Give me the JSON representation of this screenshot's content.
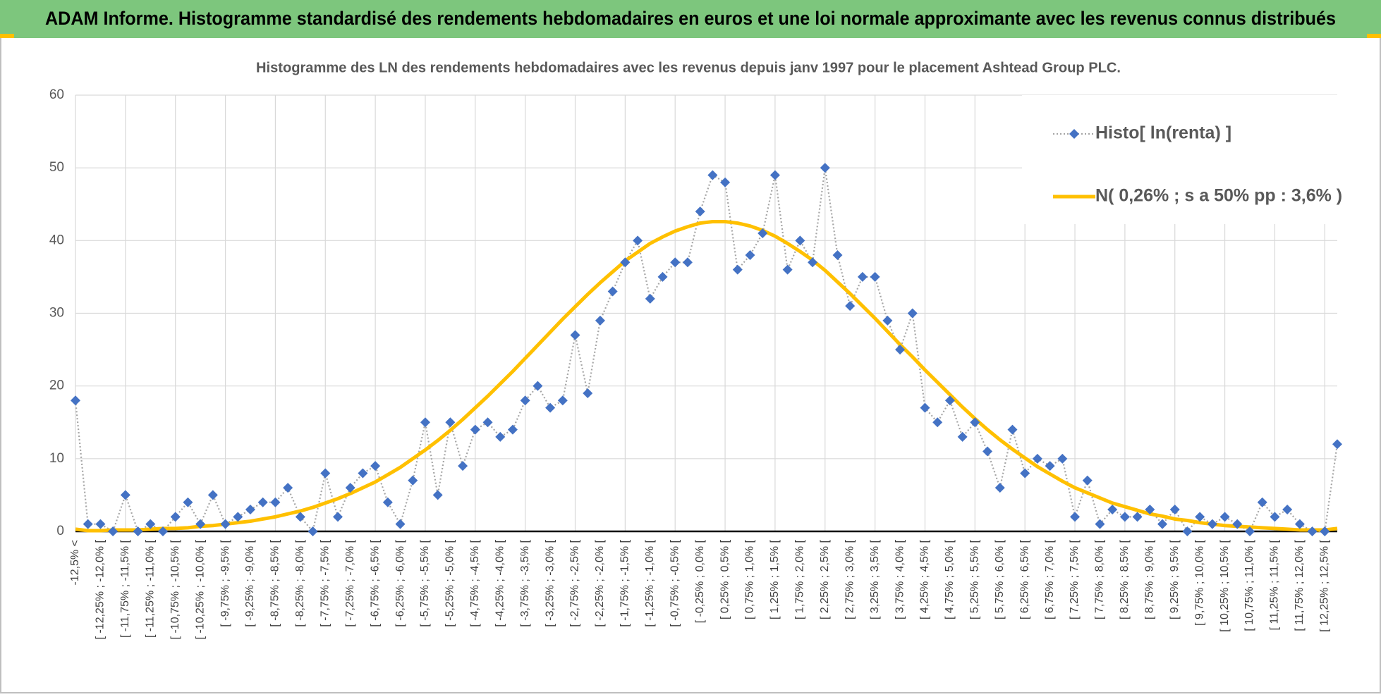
{
  "chart_data": {
    "type": "line",
    "header": "ADAM Informe. Histogramme standardisé des rendements hebdomadaires en euros et une loi normale approximante avec les revenus connus distribués",
    "title": "Histogramme  des LN des rendements  hebdomadaires avec les revenus depuis janv 1997 pour le placement Ashtead Group PLC.",
    "categories": [
      "-12,5% <",
      null,
      "[ -12,25% ; -12,0% [",
      null,
      "[ -11,75% ; -11,5% [",
      null,
      "[ -11,25% ; -11,0% [",
      null,
      "[ -10,75% ; -10,5% [",
      null,
      "[ -10,25% ; -10,0% [",
      null,
      "[ -9,75% ; -9,5% [",
      null,
      "[ -9,25% ; -9,0% [",
      null,
      "[ -8,75% ; -8,5% [",
      null,
      "[ -8,25% ; -8,0% [",
      null,
      "[ -7,75% ; -7,5% [",
      null,
      "[ -7,25% ; -7,0% [",
      null,
      "[ -6,75% ; -6,5% [",
      null,
      "[ -6,25% ; -6,0% [",
      null,
      "[ -5,75% ; -5,5% [",
      null,
      "[ -5,25% ; -5,0% [",
      null,
      "[ -4,75% ; -4,5% [",
      null,
      "[ -4,25% ; -4,0% [",
      null,
      "[ -3,75% ; -3,5% [",
      null,
      "[ -3,25% ; -3,0% [",
      null,
      "[ -2,75% ; -2,5% [",
      null,
      "[ -2,25% ; -2,0% [",
      null,
      "[ -1,75% ; -1,5% [",
      null,
      "[ -1,25% ; -1,0% [",
      null,
      "[ -0,75% ; -0,5% [",
      null,
      "[ -0,25% ; 0,0% [",
      null,
      "[ 0,25% ; 0,5% [",
      null,
      "[ 0,75% ; 1,0% [",
      null,
      "[ 1,25% ; 1,5% [",
      null,
      "[ 1,75% ; 2,0% [",
      null,
      "[ 2,25% ; 2,5% [",
      null,
      "[ 2,75% ; 3,0% [",
      null,
      "[ 3,25% ; 3,5% [",
      null,
      "[ 3,75% ; 4,0% [",
      null,
      "[ 4,25% ; 4,5% [",
      null,
      "[ 4,75% ; 5,0% [",
      null,
      "[ 5,25% ; 5,5% [",
      null,
      "[ 5,75% ; 6,0% [",
      null,
      "[ 6,25% ; 6,5% [",
      null,
      "[ 6,75% ; 7,0% [",
      null,
      "[ 7,25% ; 7,5% [",
      null,
      "[ 7,75% ; 8,0% [",
      null,
      "[ 8,25% ; 8,5% [",
      null,
      "[ 8,75% ; 9,0% [",
      null,
      "[ 9,25% ; 9,5% [",
      null,
      "[ 9,75% ; 10,0% [",
      null,
      "[ 10,25% ; 10,5% [",
      null,
      "[ 10,75% ; 11,0% [",
      null,
      "[ 11,25% ; 11,5% [",
      null,
      "[ 11,75% ; 12,0% [",
      null,
      "[ 12,25% ; 12,5% [",
      null
    ],
    "series": [
      {
        "name": "Histo[ ln(renta) ]",
        "color": "#4472c4",
        "line_color": "#a6a6a6",
        "values": [
          18,
          1,
          1,
          0,
          5,
          0,
          1,
          0,
          2,
          4,
          1,
          5,
          1,
          2,
          3,
          4,
          4,
          6,
          2,
          0,
          8,
          2,
          6,
          8,
          9,
          4,
          1,
          7,
          15,
          5,
          15,
          9,
          14,
          15,
          13,
          14,
          18,
          20,
          17,
          18,
          27,
          19,
          29,
          33,
          37,
          40,
          32,
          35,
          37,
          37,
          44,
          49,
          48,
          36,
          38,
          41,
          49,
          36,
          40,
          37,
          50,
          38,
          31,
          35,
          35,
          29,
          25,
          30,
          17,
          15,
          18,
          13,
          15,
          11,
          6,
          14,
          8,
          10,
          9,
          10,
          2,
          7,
          1,
          3,
          2,
          2,
          3,
          1,
          3,
          0,
          2,
          1,
          2,
          1,
          0,
          4,
          2,
          3,
          1,
          0,
          0,
          12
        ]
      },
      {
        "name": "N( 0,26% ; s a 50% pp : 3,6% )",
        "color": "#ffc000",
        "values": [
          0.3,
          0.1,
          0.1,
          0.2,
          0.2,
          0.2,
          0.3,
          0.4,
          0.4,
          0.5,
          0.7,
          0.8,
          1.0,
          1.2,
          1.4,
          1.7,
          2.0,
          2.4,
          2.8,
          3.3,
          3.9,
          4.5,
          5.2,
          6.0,
          6.8,
          7.8,
          8.8,
          10.0,
          11.2,
          12.5,
          13.9,
          15.4,
          17.0,
          18.6,
          20.3,
          22.0,
          23.8,
          25.6,
          27.4,
          29.2,
          30.9,
          32.6,
          34.2,
          35.7,
          37.2,
          38.4,
          39.6,
          40.5,
          41.3,
          41.9,
          42.4,
          42.6,
          42.6,
          42.4,
          42.0,
          41.4,
          40.6,
          39.6,
          38.5,
          37.3,
          35.9,
          34.3,
          32.7,
          31.0,
          29.3,
          27.5,
          25.7,
          24.0,
          22.2,
          20.5,
          18.8,
          17.1,
          15.5,
          14.0,
          12.6,
          11.3,
          10.1,
          8.9,
          7.9,
          6.9,
          6.0,
          5.3,
          4.6,
          3.9,
          3.4,
          2.9,
          2.4,
          2.1,
          1.7,
          1.5,
          1.2,
          1.0,
          0.8,
          0.7,
          0.6,
          0.5,
          0.4,
          0.3,
          0.2,
          0.2,
          0.2,
          0.4
        ]
      }
    ],
    "ylim": [
      0,
      60
    ],
    "yticks": [
      0,
      10,
      20,
      30,
      40,
      50,
      60
    ],
    "grid": true,
    "legend": "top-right"
  }
}
